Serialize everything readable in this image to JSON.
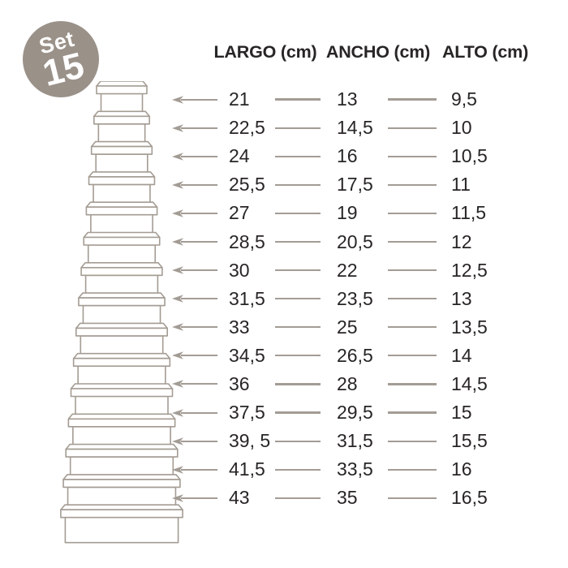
{
  "badge": {
    "label_top": "Set",
    "label_number": "15",
    "bg_color": "#9a9189",
    "text_color": "#ffffff"
  },
  "tower": {
    "box_count": 15,
    "stroke_color": "#a49c93"
  },
  "table": {
    "headers": [
      "LARGO (cm)",
      "ANCHO (cm)",
      "ALTO (cm)"
    ],
    "text_color": "#282525",
    "line_color": "#a39c95",
    "rows": [
      {
        "largo": "21",
        "ancho": "13",
        "alto": "9,5"
      },
      {
        "largo": "22,5",
        "ancho": "14,5",
        "alto": "10"
      },
      {
        "largo": "24",
        "ancho": "16",
        "alto": "10,5"
      },
      {
        "largo": "25,5",
        "ancho": "17,5",
        "alto": "11"
      },
      {
        "largo": "27",
        "ancho": "19",
        "alto": "11,5"
      },
      {
        "largo": "28,5",
        "ancho": "20,5",
        "alto": "12"
      },
      {
        "largo": "30",
        "ancho": "22",
        "alto": "12,5"
      },
      {
        "largo": "31,5",
        "ancho": "23,5",
        "alto": "13"
      },
      {
        "largo": "33",
        "ancho": "25",
        "alto": "13,5"
      },
      {
        "largo": "34,5",
        "ancho": "26,5",
        "alto": "14"
      },
      {
        "largo": "36",
        "ancho": "28",
        "alto": "14,5"
      },
      {
        "largo": "37,5",
        "ancho": "29,5",
        "alto": "15"
      },
      {
        "largo": "39, 5",
        "ancho": "31,5",
        "alto": "15,5"
      },
      {
        "largo": "41,5",
        "ancho": "33,5",
        "alto": "16"
      },
      {
        "largo": "43",
        "ancho": "35",
        "alto": "16,5"
      }
    ]
  }
}
